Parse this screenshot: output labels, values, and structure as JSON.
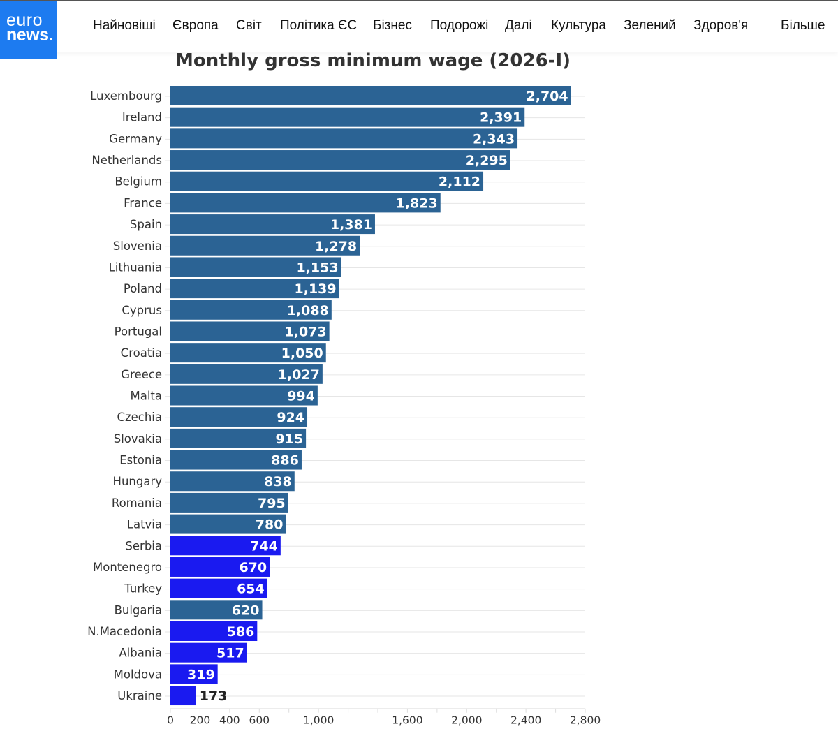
{
  "header": {
    "logo_line1": "euro",
    "logo_line2": "news.",
    "nav": [
      "Найновіші",
      "Європа",
      "Світ",
      "Політика ЄС",
      "Бізнес",
      "Подорожі",
      "Далі",
      "Культура",
      "Зелений",
      "Здоров'я",
      "Більше"
    ]
  },
  "colors": {
    "eu_bar": "#2b6394",
    "non_eu_bar": "#1a1af0",
    "logo_bg": "#1d7bf0",
    "gridline": "#e6e6e6"
  },
  "chart_data": {
    "type": "bar",
    "orientation": "horizontal",
    "title": "Monthly gross minimum wage (2026-I)",
    "xlabel": "",
    "ylabel": "",
    "xlim": [
      0,
      2800
    ],
    "grid": true,
    "x_ticks": [
      0,
      200,
      400,
      600,
      800,
      1000,
      1200,
      1400,
      1600,
      1800,
      2000,
      2200,
      2400,
      2600,
      2800
    ],
    "x_tick_labels": [
      {
        "value": 0,
        "label": "0"
      },
      {
        "value": 200,
        "label": "200"
      },
      {
        "value": 400,
        "label": "400"
      },
      {
        "value": 600,
        "label": "600"
      },
      {
        "value": 1000,
        "label": "1,000"
      },
      {
        "value": 1600,
        "label": "1,600"
      },
      {
        "value": 2000,
        "label": "2,000"
      },
      {
        "value": 2400,
        "label": "2,400"
      },
      {
        "value": 2800,
        "label": "2,800"
      }
    ],
    "categories": [
      "Luxembourg",
      "Ireland",
      "Germany",
      "Netherlands",
      "Belgium",
      "France",
      "Spain",
      "Slovenia",
      "Lithuania",
      "Poland",
      "Cyprus",
      "Portugal",
      "Croatia",
      "Greece",
      "Malta",
      "Czechia",
      "Slovakia",
      "Estonia",
      "Hungary",
      "Romania",
      "Latvia",
      "Serbia",
      "Montenegro",
      "Turkey",
      "Bulgaria",
      "N.Macedonia",
      "Albania",
      "Moldova",
      "Ukraine"
    ],
    "values": [
      2704,
      2391,
      2343,
      2295,
      2112,
      1823,
      1381,
      1278,
      1153,
      1139,
      1088,
      1073,
      1050,
      1027,
      994,
      924,
      915,
      886,
      838,
      795,
      780,
      744,
      670,
      654,
      620,
      586,
      517,
      319,
      173
    ],
    "value_labels": [
      "2,704",
      "2,391",
      "2,343",
      "2,295",
      "2,112",
      "1,823",
      "1,381",
      "1,278",
      "1,153",
      "1,139",
      "1,088",
      "1,073",
      "1,050",
      "1,027",
      "994",
      "924",
      "915",
      "886",
      "838",
      "795",
      "780",
      "744",
      "670",
      "654",
      "620",
      "586",
      "517",
      "319",
      "173"
    ],
    "group": [
      "eu",
      "eu",
      "eu",
      "eu",
      "eu",
      "eu",
      "eu",
      "eu",
      "eu",
      "eu",
      "eu",
      "eu",
      "eu",
      "eu",
      "eu",
      "eu",
      "eu",
      "eu",
      "eu",
      "eu",
      "eu",
      "non_eu",
      "non_eu",
      "non_eu",
      "eu",
      "non_eu",
      "non_eu",
      "non_eu",
      "non_eu"
    ]
  }
}
